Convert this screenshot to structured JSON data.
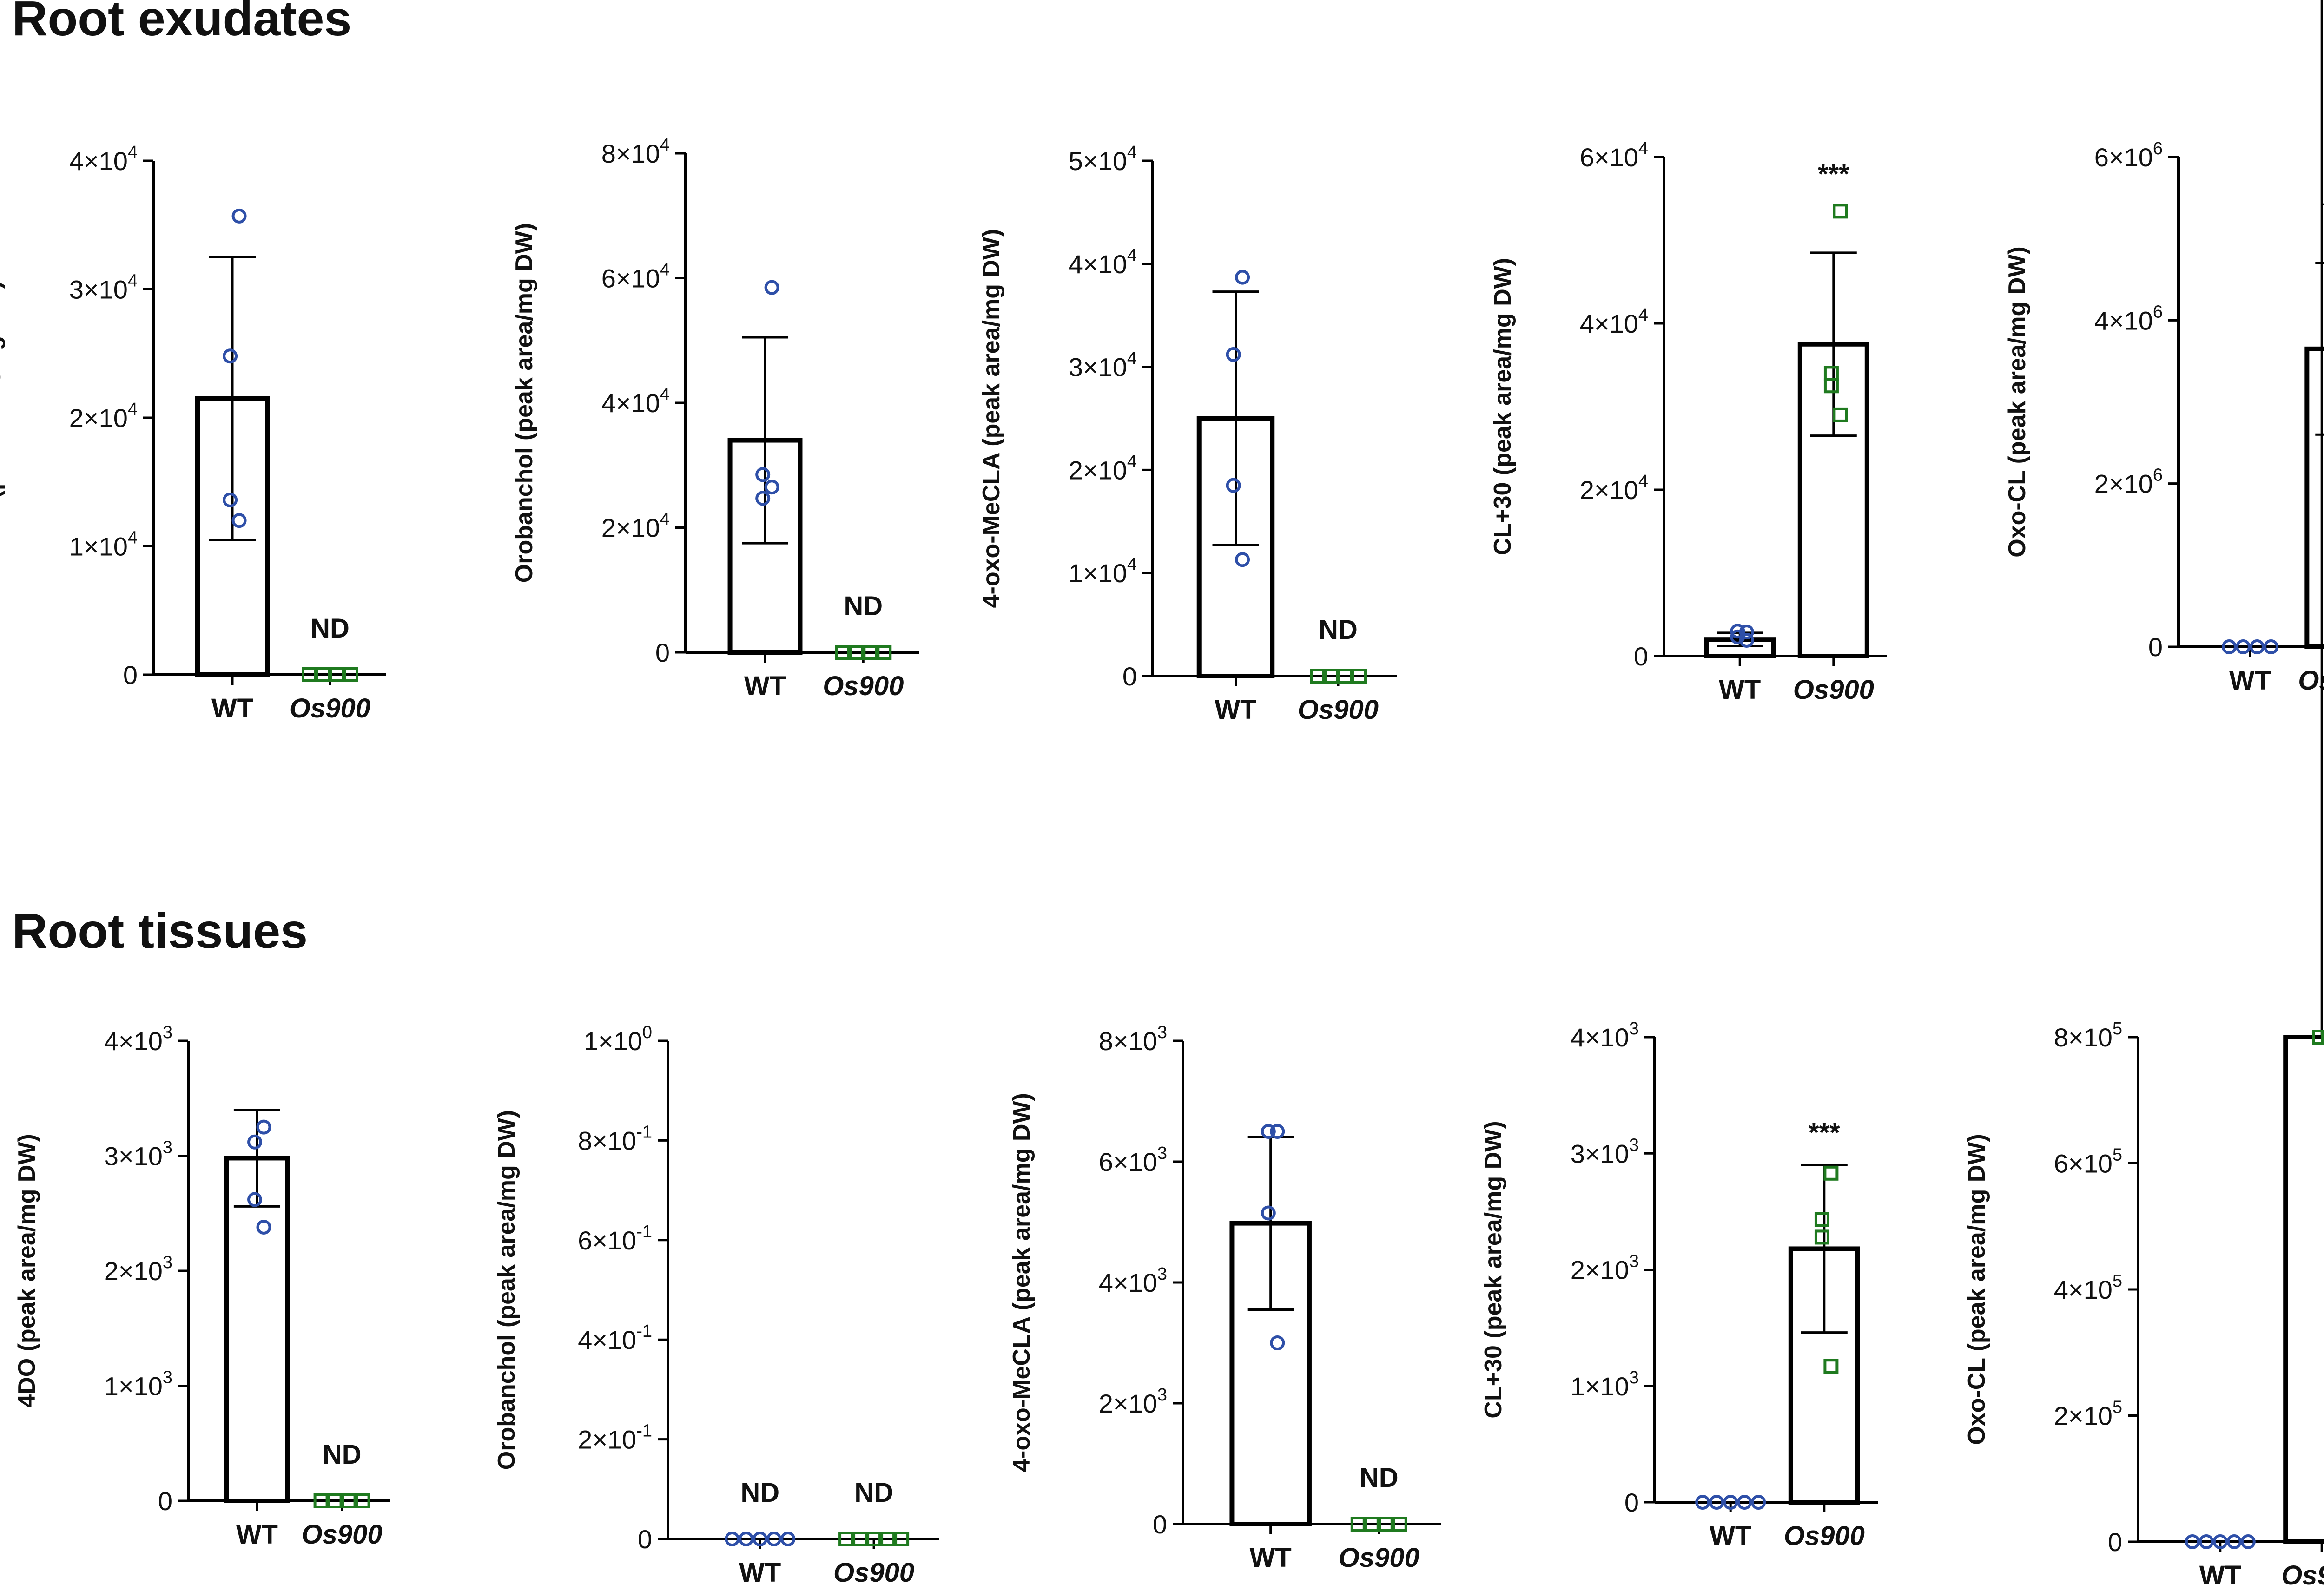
{
  "sections": [
    {
      "title": "Root exudates"
    },
    {
      "title": "Root tissues"
    }
  ],
  "colors": {
    "wt": "#2e4fa8",
    "mutant": "#1f7a1f",
    "axis": "#000000"
  },
  "chart_data": [
    {
      "type": "bar",
      "section": "Root exudates",
      "ylabel": "4DO (peak area/mg DW)",
      "categories": [
        "WT",
        "Os900"
      ],
      "ylim": [
        0,
        40000
      ],
      "yticks": [
        {
          "value": 0,
          "label": "0"
        },
        {
          "value": 10000,
          "label": "1×10",
          "exp": "4"
        },
        {
          "value": 20000,
          "label": "2×10",
          "exp": "4"
        },
        {
          "value": 30000,
          "label": "3×10",
          "exp": "4"
        },
        {
          "value": 40000,
          "label": "4×10",
          "exp": "4"
        }
      ],
      "series": [
        {
          "means": [
            21500,
            0
          ],
          "errors": [
            11000,
            0
          ],
          "points": [
            [
              35700,
              24800,
              13600,
              12000
            ],
            [
              0,
              0,
              0,
              0
            ]
          ]
        }
      ],
      "annotations": [
        "",
        "ND"
      ]
    },
    {
      "type": "bar",
      "section": "Root exudates",
      "ylabel": "Orobanchol  (peak area/mg DW)",
      "categories": [
        "WT",
        "Os900"
      ],
      "ylim": [
        0,
        80000
      ],
      "yticks": [
        {
          "value": 0,
          "label": "0"
        },
        {
          "value": 20000,
          "label": "2×10",
          "exp": "4"
        },
        {
          "value": 40000,
          "label": "4×10",
          "exp": "4"
        },
        {
          "value": 60000,
          "label": "6×10",
          "exp": "4"
        },
        {
          "value": 80000,
          "label": "8×10",
          "exp": "4"
        }
      ],
      "series": [
        {
          "means": [
            34000,
            0
          ],
          "errors": [
            16500,
            0
          ],
          "points": [
            [
              58500,
              28500,
              24700,
              26500
            ],
            [
              0,
              0,
              0,
              0
            ]
          ]
        }
      ],
      "annotations": [
        "",
        "ND"
      ]
    },
    {
      "type": "bar",
      "section": "Root exudates",
      "ylabel": "4-oxo-MeCLA  (peak area/mg DW)",
      "categories": [
        "WT",
        "Os900"
      ],
      "ylim": [
        0,
        50000
      ],
      "yticks": [
        {
          "value": 0,
          "label": "0"
        },
        {
          "value": 10000,
          "label": "1×10",
          "exp": "4"
        },
        {
          "value": 20000,
          "label": "2×10",
          "exp": "4"
        },
        {
          "value": 30000,
          "label": "3×10",
          "exp": "4"
        },
        {
          "value": 40000,
          "label": "4×10",
          "exp": "4"
        },
        {
          "value": 50000,
          "label": "5×10",
          "exp": "4"
        }
      ],
      "series": [
        {
          "means": [
            25000,
            0
          ],
          "errors": [
            12300,
            0
          ],
          "points": [
            [
              38700,
              31200,
              18500,
              11300
            ],
            [
              0,
              0,
              0,
              0
            ]
          ]
        }
      ],
      "annotations": [
        "",
        "ND"
      ]
    },
    {
      "type": "bar",
      "section": "Root exudates",
      "ylabel": "CL+30 (peak area/mg DW)",
      "categories": [
        "WT",
        "Os900"
      ],
      "ylim": [
        0,
        60000
      ],
      "yticks": [
        {
          "value": 0,
          "label": "0"
        },
        {
          "value": 20000,
          "label": "2×10",
          "exp": "4"
        },
        {
          "value": 40000,
          "label": "4×10",
          "exp": "4"
        },
        {
          "value": 60000,
          "label": "6×10",
          "exp": "4"
        }
      ],
      "series": [
        {
          "means": [
            2000,
            37500
          ],
          "errors": [
            800,
            11000
          ],
          "points": [
            [
              2900,
              3000,
              2300,
              1900
            ],
            [
              53500,
              34000,
              32500,
              29000
            ]
          ]
        }
      ],
      "annotations": [
        "",
        "***"
      ]
    },
    {
      "type": "bar",
      "section": "Root exudates",
      "ylabel": "Oxo-CL  (peak area/mg DW)",
      "categories": [
        "WT",
        "Os900"
      ],
      "ylim": [
        0,
        6000000
      ],
      "yticks": [
        {
          "value": 0,
          "label": "0"
        },
        {
          "value": 2000000,
          "label": "2×10",
          "exp": "6"
        },
        {
          "value": 4000000,
          "label": "4×10",
          "exp": "6"
        },
        {
          "value": 6000000,
          "label": "6×10",
          "exp": "6"
        }
      ],
      "series": [
        {
          "means": [
            0,
            3650000
          ],
          "errors": [
            0,
            1050000
          ],
          "points": [
            [
              0,
              0,
              0,
              0
            ],
            [
              4900000,
              4050000,
              2850000,
              2650000
            ]
          ]
        }
      ],
      "annotations": [
        "",
        "***"
      ]
    },
    {
      "type": "bar",
      "section": "Root tissues",
      "ylabel": "4DO (peak area/mg DW)",
      "categories": [
        "WT",
        "Os900"
      ],
      "ylim": [
        0,
        4000
      ],
      "yticks": [
        {
          "value": 0,
          "label": "0"
        },
        {
          "value": 1000,
          "label": "1×10",
          "exp": "3"
        },
        {
          "value": 2000,
          "label": "2×10",
          "exp": "3"
        },
        {
          "value": 3000,
          "label": "3×10",
          "exp": "3"
        },
        {
          "value": 4000,
          "label": "4×10",
          "exp": "3"
        }
      ],
      "series": [
        {
          "means": [
            2980,
            0
          ],
          "errors": [
            420,
            0
          ],
          "points": [
            [
              3250,
              3120,
              2620,
              2380
            ],
            [
              0,
              0,
              0,
              0
            ]
          ]
        }
      ],
      "annotations": [
        "",
        "ND"
      ]
    },
    {
      "type": "bar",
      "section": "Root tissues",
      "ylabel": "Orobanchol  (peak area/mg DW)",
      "categories": [
        "WT",
        "Os900"
      ],
      "ylim": [
        0,
        1
      ],
      "yticks": [
        {
          "value": 0,
          "label": "0"
        },
        {
          "value": 0.2,
          "label": "2×10",
          "exp": "-1"
        },
        {
          "value": 0.4,
          "label": "4×10",
          "exp": "-1"
        },
        {
          "value": 0.6,
          "label": "6×10",
          "exp": "-1"
        },
        {
          "value": 0.8,
          "label": "8×10",
          "exp": "-1"
        },
        {
          "value": 1,
          "label": "1×10",
          "exp": "0"
        }
      ],
      "series": [
        {
          "means": [
            0,
            0
          ],
          "errors": [
            0,
            0
          ],
          "points": [
            [
              0,
              0,
              0,
              0,
              0
            ],
            [
              0,
              0,
              0,
              0,
              0
            ]
          ]
        }
      ],
      "annotations": [
        "ND",
        "ND"
      ]
    },
    {
      "type": "bar",
      "section": "Root tissues",
      "ylabel": "4-oxo-MeCLA  (peak area/mg DW)",
      "categories": [
        "WT",
        "Os900"
      ],
      "ylim": [
        0,
        8000
      ],
      "yticks": [
        {
          "value": 0,
          "label": "0"
        },
        {
          "value": 2000,
          "label": "2×10",
          "exp": "3"
        },
        {
          "value": 4000,
          "label": "4×10",
          "exp": "3"
        },
        {
          "value": 6000,
          "label": "6×10",
          "exp": "3"
        },
        {
          "value": 8000,
          "label": "8×10",
          "exp": "3"
        }
      ],
      "series": [
        {
          "means": [
            4980,
            0
          ],
          "errors": [
            1430,
            0
          ],
          "points": [
            [
              6500,
              6500,
              5150,
              3000
            ],
            [
              0,
              0,
              0,
              0
            ]
          ]
        }
      ],
      "annotations": [
        "",
        "ND"
      ]
    },
    {
      "type": "bar",
      "section": "Root tissues",
      "ylabel": "CL+30 (peak area/mg DW)",
      "categories": [
        "WT",
        "Os900"
      ],
      "ylim": [
        0,
        4000
      ],
      "yticks": [
        {
          "value": 0,
          "label": "0"
        },
        {
          "value": 1000,
          "label": "1×10",
          "exp": "3"
        },
        {
          "value": 2000,
          "label": "2×10",
          "exp": "3"
        },
        {
          "value": 3000,
          "label": "3×10",
          "exp": "3"
        },
        {
          "value": 4000,
          "label": "4×10",
          "exp": "3"
        }
      ],
      "series": [
        {
          "means": [
            0,
            2180
          ],
          "errors": [
            0,
            720
          ],
          "points": [
            [
              0,
              0,
              0,
              0,
              0
            ],
            [
              2830,
              2430,
              2280,
              1170
            ]
          ]
        }
      ],
      "annotations": [
        "",
        "***"
      ]
    },
    {
      "type": "bar",
      "section": "Root tissues",
      "ylabel": "Oxo-CL  (peak area/mg DW)",
      "categories": [
        "WT",
        "Os900"
      ],
      "ylim": [
        0,
        800000
      ],
      "yticks": [
        {
          "value": 0,
          "label": "0"
        },
        {
          "value": 200000,
          "label": "2×10",
          "exp": "5"
        },
        {
          "value": 400000,
          "label": "4×10",
          "exp": "5"
        },
        {
          "value": 600000,
          "label": "6×10",
          "exp": "5"
        },
        {
          "value": 800000,
          "label": "8×10",
          "exp": "5"
        }
      ],
      "series": [
        {
          "means": [
            0,
            5070000
          ],
          "errors": [
            0,
            1780000
          ],
          "points": [
            [
              0,
              0,
              0,
              0,
              0
            ],
            [
              6200000,
              5950000,
              5750000,
              2650000
            ]
          ]
        }
      ],
      "annotations": [
        "",
        "***"
      ]
    }
  ]
}
